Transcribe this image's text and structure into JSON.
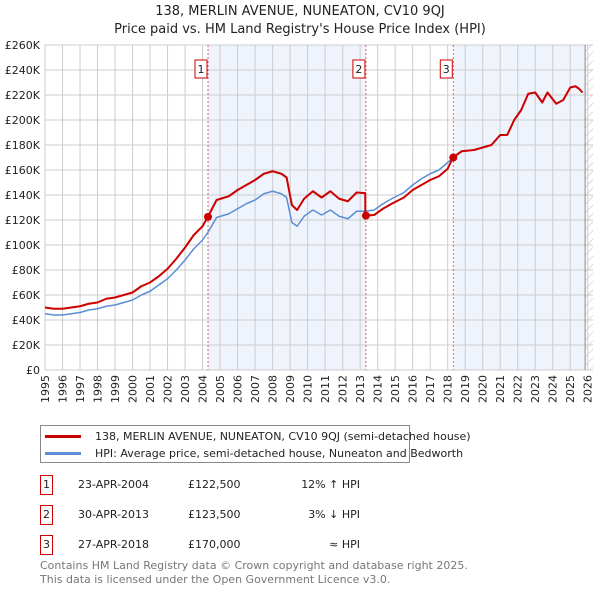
{
  "chart_data": {
    "type": "line",
    "title": "138, MERLIN AVENUE, NUNEATON, CV10 9QJ",
    "subtitle": "Price paid vs. HM Land Registry's House Price Index (HPI)",
    "xlim": [
      1995,
      2026.3
    ],
    "ylim": [
      0,
      260000
    ],
    "yticks": [
      0,
      20000,
      40000,
      60000,
      80000,
      100000,
      120000,
      140000,
      160000,
      180000,
      200000,
      220000,
      240000,
      260000
    ],
    "ytick_labels": [
      "£0",
      "£20K",
      "£40K",
      "£60K",
      "£80K",
      "£100K",
      "£120K",
      "£140K",
      "£160K",
      "£180K",
      "£200K",
      "£220K",
      "£240K",
      "£260K"
    ],
    "xticks": [
      "1995",
      "1996",
      "1997",
      "1998",
      "1999",
      "2000",
      "2001",
      "2002",
      "2003",
      "2004",
      "2005",
      "2006",
      "2007",
      "2008",
      "2009",
      "2010",
      "2011",
      "2012",
      "2013",
      "2014",
      "2015",
      "2016",
      "2017",
      "2018",
      "2019",
      "2020",
      "2021",
      "2022",
      "2023",
      "2024",
      "2025",
      "2026"
    ],
    "grid": true,
    "series": [
      {
        "name": "138, MERLIN AVENUE, NUNEATON, CV10 9QJ (semi-detached house)",
        "color": "#cc0000",
        "points": [
          [
            1995,
            50
          ],
          [
            1995.5,
            49
          ],
          [
            1996,
            49
          ],
          [
            1996.5,
            50
          ],
          [
            1997,
            51
          ],
          [
            1997.5,
            53
          ],
          [
            1998,
            54
          ],
          [
            1998.5,
            57
          ],
          [
            1999,
            58
          ],
          [
            1999.5,
            60
          ],
          [
            2000,
            62
          ],
          [
            2000.5,
            67
          ],
          [
            2001,
            70
          ],
          [
            2001.5,
            75
          ],
          [
            2002,
            81
          ],
          [
            2002.5,
            89
          ],
          [
            2003,
            98
          ],
          [
            2003.5,
            108
          ],
          [
            2004,
            115
          ],
          [
            2004.3,
            122.5
          ],
          [
            2004.8,
            136
          ],
          [
            2005.5,
            139
          ],
          [
            2006,
            144
          ],
          [
            2006.5,
            148
          ],
          [
            2007,
            152
          ],
          [
            2007.5,
            157
          ],
          [
            2008,
            159
          ],
          [
            2008.5,
            157
          ],
          [
            2008.8,
            154
          ],
          [
            2009.1,
            132
          ],
          [
            2009.4,
            128
          ],
          [
            2009.8,
            137
          ],
          [
            2010.3,
            143
          ],
          [
            2010.8,
            138
          ],
          [
            2011.3,
            143
          ],
          [
            2011.8,
            137
          ],
          [
            2012.3,
            135
          ],
          [
            2012.8,
            142
          ],
          [
            2013.29,
            141.5
          ],
          [
            2013.3,
            123.5
          ],
          [
            2013.8,
            124
          ],
          [
            2014.3,
            129
          ],
          [
            2014.8,
            133
          ],
          [
            2015.5,
            138
          ],
          [
            2016,
            144
          ],
          [
            2016.5,
            148
          ],
          [
            2017,
            152
          ],
          [
            2017.5,
            155
          ],
          [
            2018,
            161
          ],
          [
            2018.3,
            170
          ],
          [
            2018.8,
            175
          ],
          [
            2019.5,
            176
          ],
          [
            2020,
            178
          ],
          [
            2020.5,
            180
          ],
          [
            2021,
            188
          ],
          [
            2021.4,
            188
          ],
          [
            2021.8,
            200
          ],
          [
            2022.2,
            208
          ],
          [
            2022.6,
            221
          ],
          [
            2023,
            222
          ],
          [
            2023.4,
            214
          ],
          [
            2023.7,
            222
          ],
          [
            2024.2,
            213
          ],
          [
            2024.6,
            216
          ],
          [
            2025,
            226
          ],
          [
            2025.3,
            227
          ],
          [
            2025.5,
            225
          ],
          [
            2025.7,
            222
          ]
        ]
      },
      {
        "name": "HPI: Average price, semi-detached house, Nuneaton and Bedworth",
        "color": "#5b8ed6",
        "points": [
          [
            1995,
            45
          ],
          [
            1995.5,
            44
          ],
          [
            1996,
            44
          ],
          [
            1996.5,
            45
          ],
          [
            1997,
            46
          ],
          [
            1997.5,
            48
          ],
          [
            1998,
            49
          ],
          [
            1998.5,
            51
          ],
          [
            1999,
            52
          ],
          [
            1999.5,
            54
          ],
          [
            2000,
            56
          ],
          [
            2000.5,
            60
          ],
          [
            2001,
            63
          ],
          [
            2001.5,
            68
          ],
          [
            2002,
            73
          ],
          [
            2002.5,
            80
          ],
          [
            2003,
            88
          ],
          [
            2003.5,
            97
          ],
          [
            2004,
            104
          ],
          [
            2004.3,
            110
          ],
          [
            2004.8,
            122
          ],
          [
            2005.5,
            125
          ],
          [
            2006,
            129
          ],
          [
            2006.5,
            133
          ],
          [
            2007,
            136
          ],
          [
            2007.5,
            141
          ],
          [
            2008,
            143
          ],
          [
            2008.5,
            141
          ],
          [
            2008.8,
            138
          ],
          [
            2009.1,
            118
          ],
          [
            2009.4,
            115
          ],
          [
            2009.8,
            123
          ],
          [
            2010.3,
            128
          ],
          [
            2010.8,
            124
          ],
          [
            2011.3,
            128
          ],
          [
            2011.8,
            123
          ],
          [
            2012.3,
            121
          ],
          [
            2012.8,
            127
          ],
          [
            2013.3,
            127
          ],
          [
            2013.8,
            128
          ],
          [
            2014.3,
            133
          ],
          [
            2014.8,
            137
          ],
          [
            2015.5,
            142
          ],
          [
            2016,
            148
          ],
          [
            2016.5,
            153
          ],
          [
            2017,
            157
          ],
          [
            2017.5,
            160
          ],
          [
            2018,
            166
          ],
          [
            2018.3,
            170
          ],
          [
            2018.8,
            175
          ],
          [
            2019.5,
            176
          ],
          [
            2020,
            178
          ],
          [
            2020.5,
            180
          ],
          [
            2021,
            188
          ],
          [
            2021.4,
            188
          ],
          [
            2021.8,
            200
          ],
          [
            2022.2,
            208
          ],
          [
            2022.6,
            221
          ],
          [
            2023,
            222
          ],
          [
            2023.4,
            214
          ],
          [
            2023.7,
            222
          ],
          [
            2024.2,
            213
          ],
          [
            2024.6,
            216
          ],
          [
            2025,
            226
          ],
          [
            2025.3,
            227
          ],
          [
            2025.5,
            225
          ],
          [
            2025.7,
            222
          ]
        ]
      }
    ],
    "sales": [
      {
        "label": "1",
        "x": 2004.31,
        "value": 122.5
      },
      {
        "label": "2",
        "x": 2013.33,
        "value": 123.5
      },
      {
        "label": "3",
        "x": 2018.32,
        "value": 170
      }
    ],
    "data_end": 2025.85
  },
  "table": [
    {
      "num": "1",
      "date": "23-APR-2004",
      "price": "£122,500",
      "rel": "12% ↑ HPI"
    },
    {
      "num": "2",
      "date": "30-APR-2013",
      "price": "£123,500",
      "rel": "3% ↓ HPI"
    },
    {
      "num": "3",
      "date": "27-APR-2018",
      "price": "£170,000",
      "rel": "≈ HPI"
    }
  ],
  "footer": [
    "Contains HM Land Registry data © Crown copyright and database right 2025.",
    "This data is licensed under the Open Government Licence v3.0."
  ]
}
